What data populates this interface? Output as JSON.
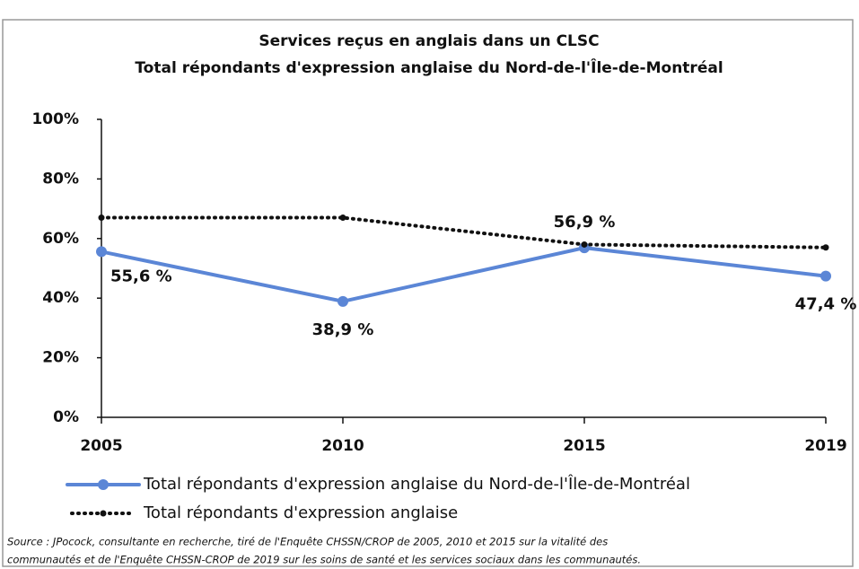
{
  "chart_data": {
    "type": "line",
    "title": [
      "Services reçus en anglais  dans un CLSC",
      "Total répondants d'expression anglaise du Nord-de-l'Île-de-Montréal"
    ],
    "categories": [
      "2005",
      "2010",
      "2015",
      "2019"
    ],
    "series": [
      {
        "name": "Total répondants d'expression anglaise du Nord-de-l'Île-de-Montréal",
        "color": "#5b86d6",
        "values": [
          55.6,
          38.9,
          56.9,
          47.4
        ],
        "value_labels": [
          "55,6 %",
          "38,9 %",
          "56,9 %",
          "47,4 %"
        ],
        "style": "solid"
      },
      {
        "name": "Total répondants d'expression anglaise",
        "color": "#111111",
        "values": [
          67,
          67,
          58,
          57
        ],
        "style": "dotted"
      }
    ],
    "ylim": [
      0,
      100
    ],
    "yticks": [
      {
        "value": 0,
        "label": "0%"
      },
      {
        "value": 20,
        "label": "20%"
      },
      {
        "value": 40,
        "label": "40%"
      },
      {
        "value": 60,
        "label": "60%"
      },
      {
        "value": 80,
        "label": "80%"
      },
      {
        "value": 100,
        "label": "100%"
      }
    ],
    "source": [
      "Source : JPocock, consultante en recherche, tiré de l'Enquête CHSSN/CROP de 2005, 2010 et 2015 sur la vitalité des",
      "communautés et de l'Enquête CHSSN-CROP de 2019 sur les soins de santé et les services sociaux dans les communautés."
    ]
  }
}
